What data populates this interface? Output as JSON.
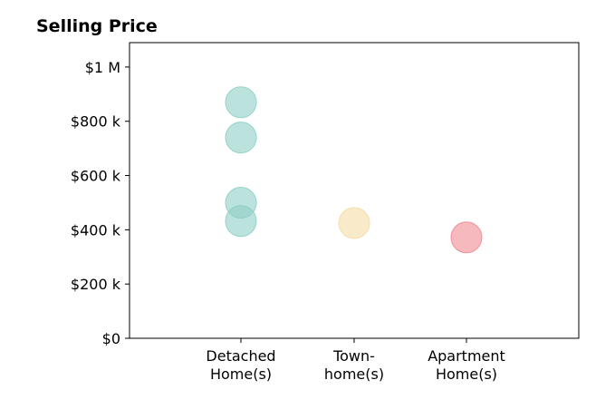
{
  "chart_data": {
    "type": "scatter",
    "title": "Selling Price",
    "xlabel": "",
    "ylabel": "",
    "categories": [
      [
        "Detached",
        "Home(s)"
      ],
      [
        "Town-",
        "home(s)"
      ],
      [
        "Apartment",
        "Home(s)"
      ]
    ],
    "ylim": [
      0,
      1090000
    ],
    "yticks": [
      0,
      200000,
      400000,
      600000,
      800000,
      1000000
    ],
    "ytick_labels": [
      "$0",
      "$200 k",
      "$400 k",
      "$600 k",
      "$800 k",
      "$1 M"
    ],
    "grid": false,
    "points": [
      {
        "category": 0,
        "value": 870000,
        "color": "#8ecfc4"
      },
      {
        "category": 0,
        "value": 740000,
        "color": "#8ecfc4"
      },
      {
        "category": 0,
        "value": 500000,
        "color": "#8ecfc4"
      },
      {
        "category": 0,
        "value": 432000,
        "color": "#8ecfc4"
      },
      {
        "category": 1,
        "value": 425000,
        "color": "#f5dca6"
      },
      {
        "category": 2,
        "value": 372000,
        "color": "#f08a93"
      }
    ]
  }
}
